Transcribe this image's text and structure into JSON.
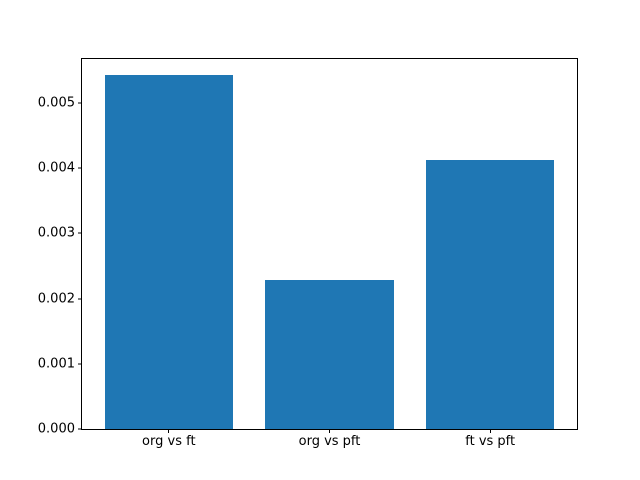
{
  "chart_data": {
    "type": "bar",
    "categories": [
      "org vs ft",
      "org vs pft",
      "ft vs pft"
    ],
    "values": [
      0.00542,
      0.00228,
      0.00412
    ],
    "title": "",
    "xlabel": "",
    "ylabel": "",
    "xlim": [
      -0.54,
      2.54
    ],
    "ylim": [
      0,
      0.00567
    ],
    "bar_width": 0.8,
    "yticks": [
      0,
      0.001,
      0.002,
      0.003,
      0.004,
      0.005
    ],
    "ytick_labels": [
      "0.000",
      "0.001",
      "0.002",
      "0.003",
      "0.004",
      "0.005"
    ],
    "bar_color": "#1f77b4",
    "axes_color": "#000000",
    "background_color": "#ffffff",
    "grid": false,
    "legend": null
  }
}
